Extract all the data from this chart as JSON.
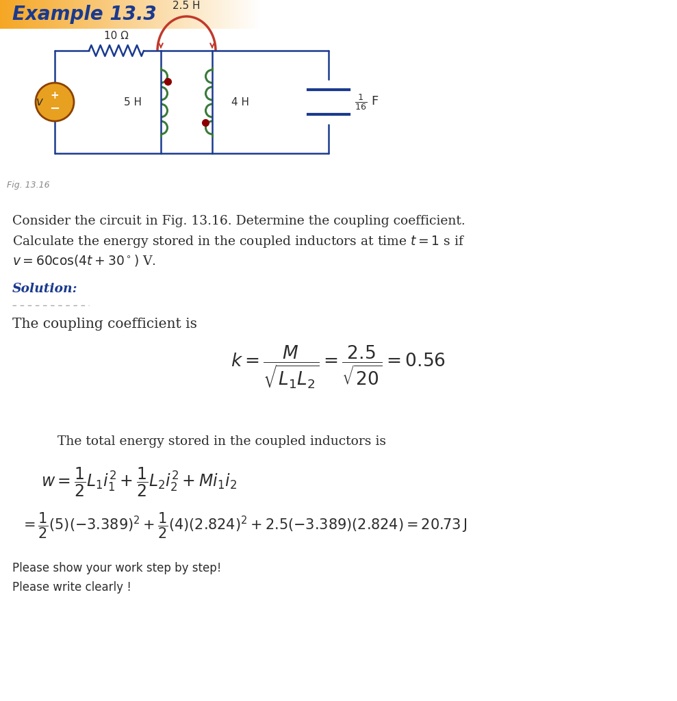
{
  "title": "Example 13.3",
  "title_bg_color": "#F5A623",
  "title_text_color": "#1a3a8f",
  "background_color": "#ffffff",
  "circuit": {
    "resistor_label": "10 Ω",
    "mutual_inductance_label": "2.5 H",
    "L1_label": "5 H",
    "L2_label": "4 H",
    "voltage_source_label": "v"
  },
  "circuit_color": "#1a3a8f",
  "coil_color": "#3a7a3a",
  "mutual_color": "#c0392b",
  "vs_color": "#e8a020",
  "dot_color": "#8B0000",
  "problem_lines": [
    "Consider the circuit in Fig. 13.16. Determine the coupling coefficient.",
    "Calculate the energy stored in the coupled inductors at time $t = 1$ s if",
    "$v = 60\\cos(4t + 30^\\circ)$ V."
  ],
  "solution_label": "Solution:",
  "solution_color": "#1a3a8f",
  "coupling_text": "The coupling coefficient is",
  "energy_text": "    The total energy stored in the coupled inductors is",
  "footer_line1": "Please show your work step by step!",
  "footer_line2": "Please write clearly !",
  "text_color": "#2c2c2c",
  "body_fontsize": 13.5
}
